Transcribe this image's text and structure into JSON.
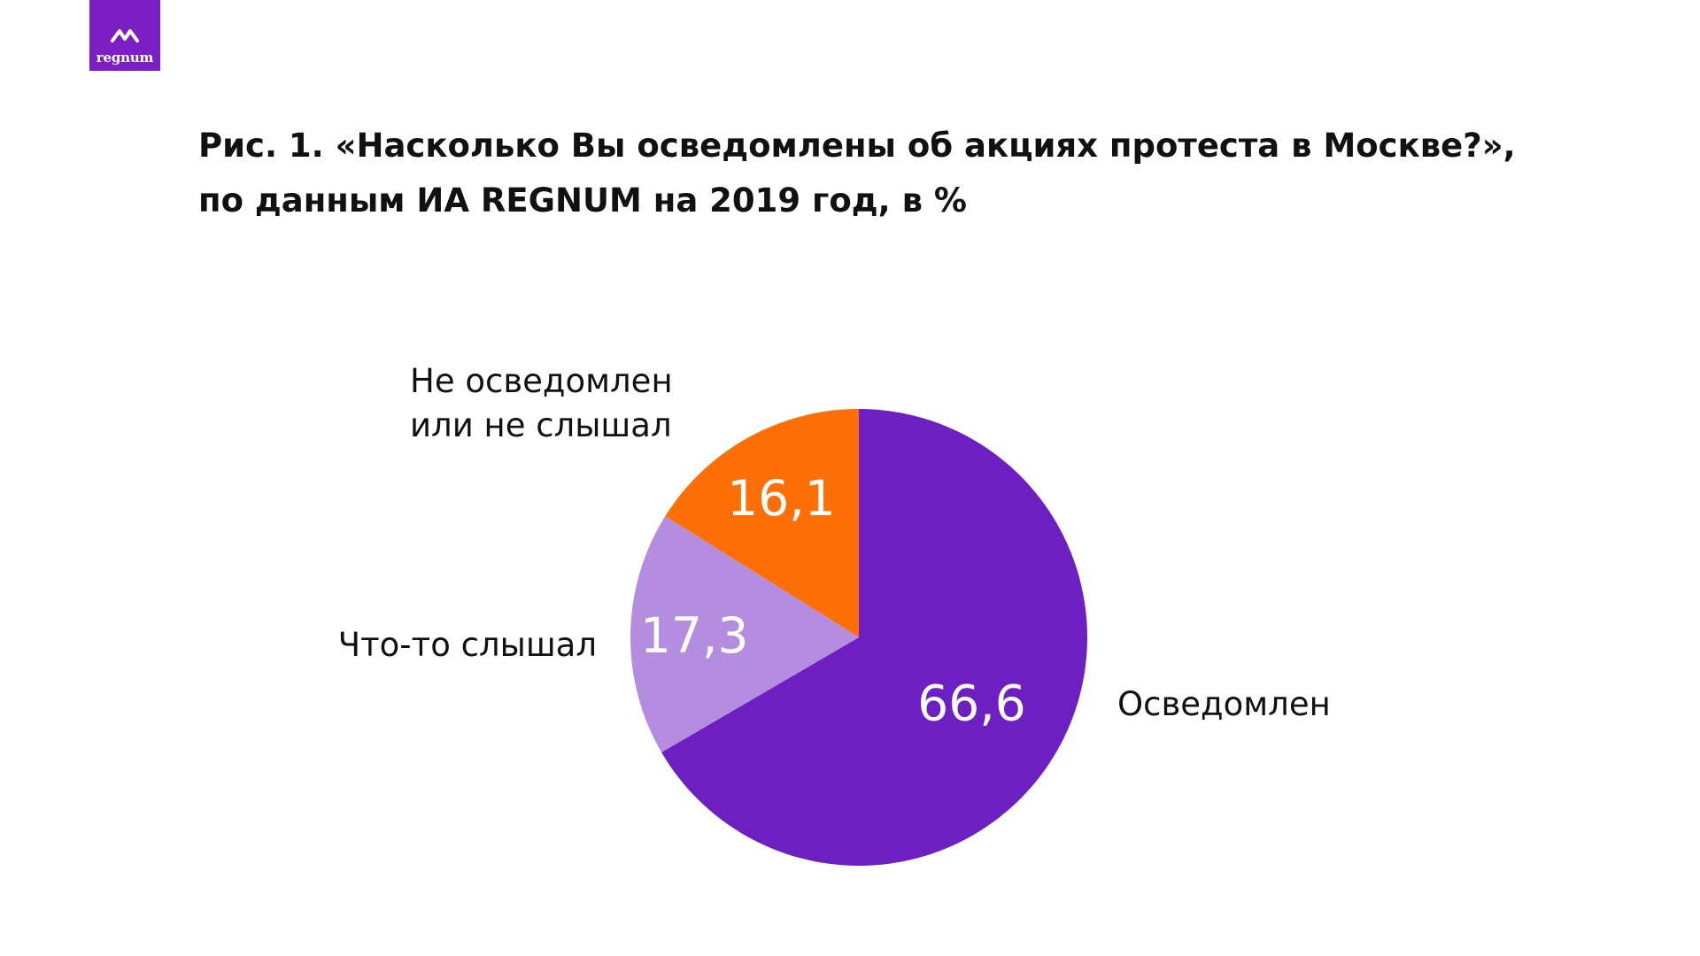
{
  "logo": {
    "text": "regnum",
    "icon": "mountain-icon",
    "color": "#7b1fc4"
  },
  "title": {
    "line1": "Рис. 1. «Насколько Вы осведомлены об акциях протеста в Москве?»,",
    "line2": "по данным ИА REGNUM на 2019 год, в %"
  },
  "chart_data": {
    "type": "pie",
    "title": "Рис. 1. «Насколько Вы осведомлены об акциях протеста в Москве?», по данным ИА REGNUM на 2019 год, в %",
    "slices": [
      {
        "category": "Осведомлен",
        "value": 66.6,
        "label": "66,6",
        "color": "#6e1fc1",
        "label_color": "#ffffff"
      },
      {
        "category": "Что-то слышал",
        "value": 17.3,
        "label": "17,3",
        "color": "#b48ce0",
        "label_color": "#ffffff"
      },
      {
        "category": "Не осведомлен или не слышал",
        "category_lines": [
          "Не осведомлен",
          "или не слышал"
        ],
        "value": 16.1,
        "label": "16,1",
        "color": "#ff6f08",
        "label_color": "#ffffff"
      }
    ],
    "start_angle": "12 o'clock",
    "direction": "clockwise",
    "legend": "none (category labels placed beside slices)"
  }
}
